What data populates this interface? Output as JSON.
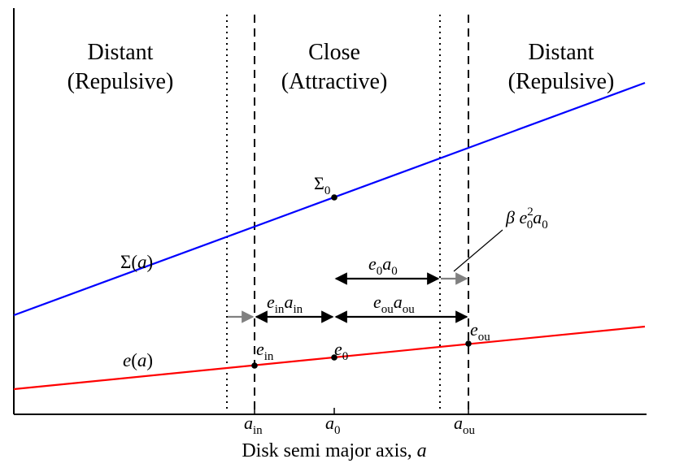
{
  "regions": {
    "left_title": "Distant",
    "left_subtitle": "(Repulsive)",
    "center_title": "Close",
    "center_subtitle": "(Attractive)",
    "right_title": "Distant",
    "right_subtitle": "(Repulsive)"
  },
  "axis": {
    "xlabel": "Disk semi major axis, a",
    "ticks": [
      "a_in",
      "a_0",
      "a_ou"
    ]
  },
  "curves": {
    "sigma": {
      "label": "Σ(a)",
      "point_label": "Σ₀",
      "color": "#0000ff"
    },
    "ecc": {
      "label": "e(a)",
      "color": "#ff0000"
    }
  },
  "points": [
    "e_in",
    "e_0",
    "e_ou"
  ],
  "spans": [
    "e_in a_in",
    "e_ou a_ou",
    "e_0 a_0"
  ],
  "callout": "β e₀² a₀",
  "colors": {
    "axis": "#000000",
    "arrow_gray": "#808080"
  }
}
